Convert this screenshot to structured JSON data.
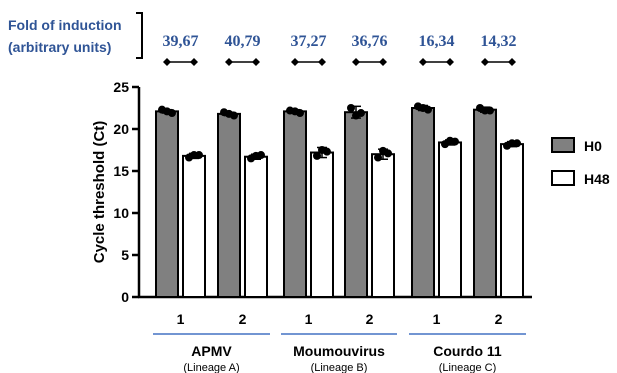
{
  "fold_header": {
    "line1": "Fold of induction",
    "line2": "(arbitrary units)",
    "values": [
      "39,67",
      "40,79",
      "37,27",
      "36,76",
      "16,34",
      "14,32"
    ]
  },
  "colors": {
    "h0_fill": "#808080",
    "h48_fill": "#ffffff",
    "fold_text": "#2f5496",
    "group_line": "#4472c4"
  },
  "chart_data": {
    "type": "bar",
    "ylabel": "Cycle threshold (Ct)",
    "ylim": [
      0,
      25
    ],
    "yticks": [
      0,
      5,
      10,
      15,
      20,
      25
    ],
    "grid": false,
    "legend_position": "right",
    "categories": [
      "1",
      "2",
      "1",
      "2",
      "1",
      "2"
    ],
    "groups": [
      {
        "name": "APMV",
        "sub": "(Lineage A)"
      },
      {
        "name": "Moumouvirus",
        "sub": "(Lineage B)"
      },
      {
        "name": "Courdo 11",
        "sub": "(Lineage C)"
      }
    ],
    "series": [
      {
        "name": "H0",
        "values": [
          22.1,
          21.8,
          22.1,
          22.0,
          22.5,
          22.3
        ],
        "errors": [
          0.2,
          0.2,
          0.2,
          0.7,
          0.3,
          0.3
        ],
        "points": [
          [
            22.3,
            22.1,
            21.9
          ],
          [
            22.0,
            21.8,
            21.6
          ],
          [
            22.2,
            22.1,
            21.9
          ],
          [
            22.5,
            21.6,
            21.9
          ],
          [
            22.7,
            22.5,
            22.3
          ],
          [
            22.5,
            22.2,
            22.2
          ]
        ]
      },
      {
        "name": "H48",
        "values": [
          16.8,
          16.7,
          17.2,
          17.0,
          18.4,
          18.2
        ],
        "errors": [
          0.3,
          0.3,
          0.6,
          0.6,
          0.3,
          0.3
        ],
        "points": [
          [
            16.6,
            16.9,
            16.9
          ],
          [
            16.5,
            16.8,
            16.9
          ],
          [
            16.8,
            17.5,
            17.3
          ],
          [
            16.6,
            17.4,
            17.1
          ],
          [
            18.2,
            18.6,
            18.5
          ],
          [
            18.0,
            18.3,
            18.3
          ]
        ]
      }
    ]
  }
}
